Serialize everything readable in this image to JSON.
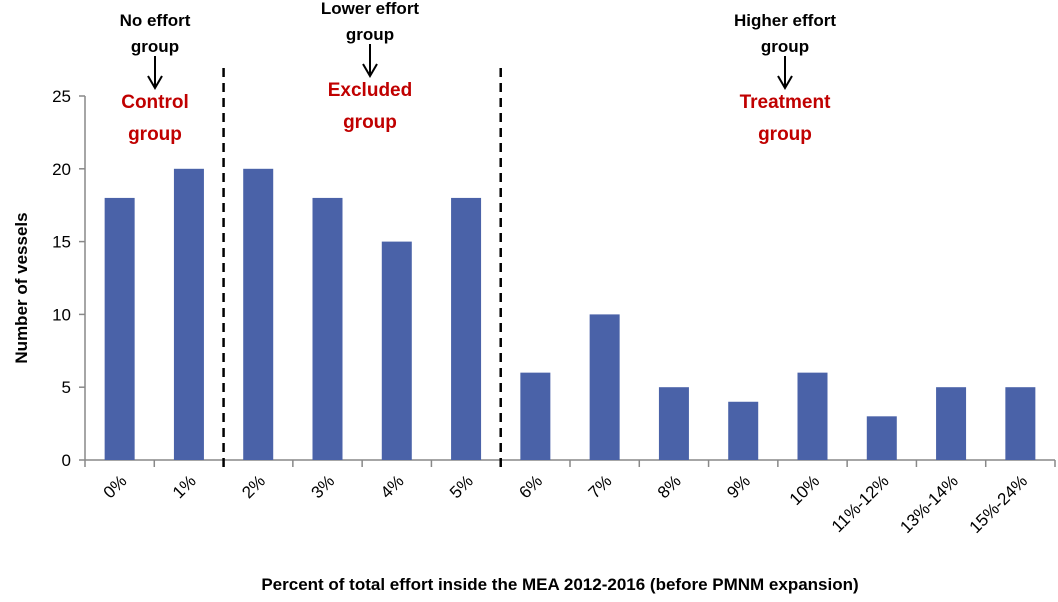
{
  "chart_data": {
    "type": "bar",
    "x_label": "Percent of total effort inside the MEA 2012-2016 (before PMNM expansion)",
    "y_label": "Number of vessels",
    "categories": [
      "0%",
      "1%",
      "2%",
      "3%",
      "4%",
      "5%",
      "6%",
      "7%",
      "8%",
      "9%",
      "10%",
      "11%-12%",
      "13%-14%",
      "15%-24%"
    ],
    "values": [
      18,
      20,
      20,
      18,
      15,
      18,
      6,
      10,
      5,
      4,
      6,
      3,
      5,
      5
    ],
    "color": "#4a62a8",
    "ylim": [
      0,
      25
    ],
    "yticks": [
      0,
      5,
      10,
      15,
      20,
      25
    ],
    "grid": false,
    "annotations": [
      {
        "group": [
          "No effort",
          "group"
        ],
        "label": [
          "Control",
          "group"
        ]
      },
      {
        "group": [
          "Lower effort",
          "group"
        ],
        "label": [
          "Excluded",
          "group"
        ]
      },
      {
        "group": [
          "Higher effort",
          "group"
        ],
        "label": [
          "Treatment",
          "group"
        ]
      }
    ]
  }
}
